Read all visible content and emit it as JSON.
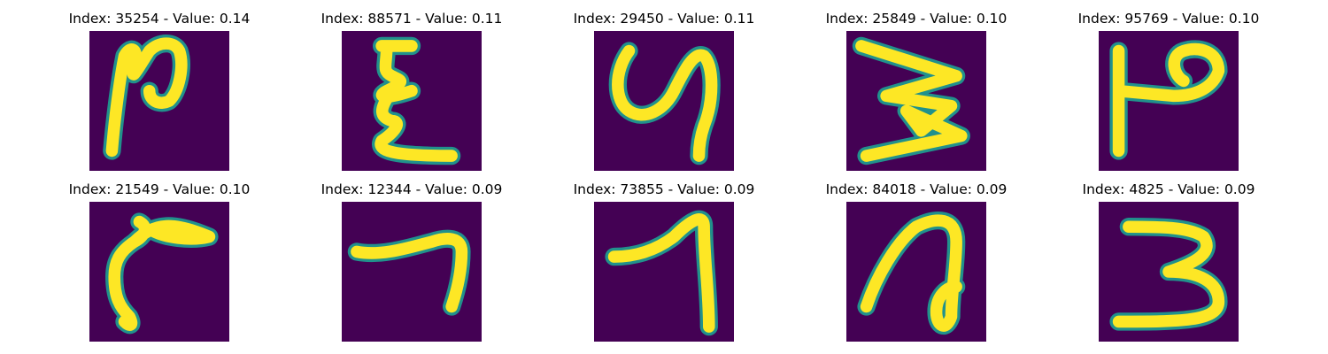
{
  "panels": [
    {
      "index": "35254",
      "value": "0.14",
      "title": "Index: 35254 - Value: 0.14",
      "glyph": "handwritten-stroke-n-loop"
    },
    {
      "index": "88571",
      "value": "0.11",
      "title": "Index: 88571 - Value: 0.11",
      "glyph": "handwritten-stroke-sigma"
    },
    {
      "index": "29450",
      "value": "0.11",
      "title": "Index: 29450 - Value: 0.11",
      "glyph": "handwritten-stroke-y"
    },
    {
      "index": "25849",
      "value": "0.10",
      "title": "Index: 25849 - Value: 0.10",
      "glyph": "handwritten-stroke-zigzag"
    },
    {
      "index": "95769",
      "value": "0.10",
      "title": "Index: 95769 - Value: 0.10",
      "glyph": "handwritten-stroke-p"
    },
    {
      "index": "21549",
      "value": "0.10",
      "title": "Index: 21549 - Value: 0.10",
      "glyph": "handwritten-stroke-r"
    },
    {
      "index": "12344",
      "value": "0.09",
      "title": "Index: 12344 - Value: 0.09",
      "glyph": "handwritten-stroke-seven-flat"
    },
    {
      "index": "73855",
      "value": "0.09",
      "title": "Index: 73855 - Value: 0.09",
      "glyph": "handwritten-stroke-seven"
    },
    {
      "index": "84018",
      "value": "0.09",
      "title": "Index: 84018 - Value: 0.09",
      "glyph": "handwritten-stroke-loop-a"
    },
    {
      "index": "4825",
      "value": "0.09",
      "title": "Index: 4825 - Value: 0.09",
      "glyph": "handwritten-stroke-three"
    }
  ],
  "colors": {
    "background": "#440154",
    "stroke": "#fde725",
    "edge": "#21918c"
  }
}
